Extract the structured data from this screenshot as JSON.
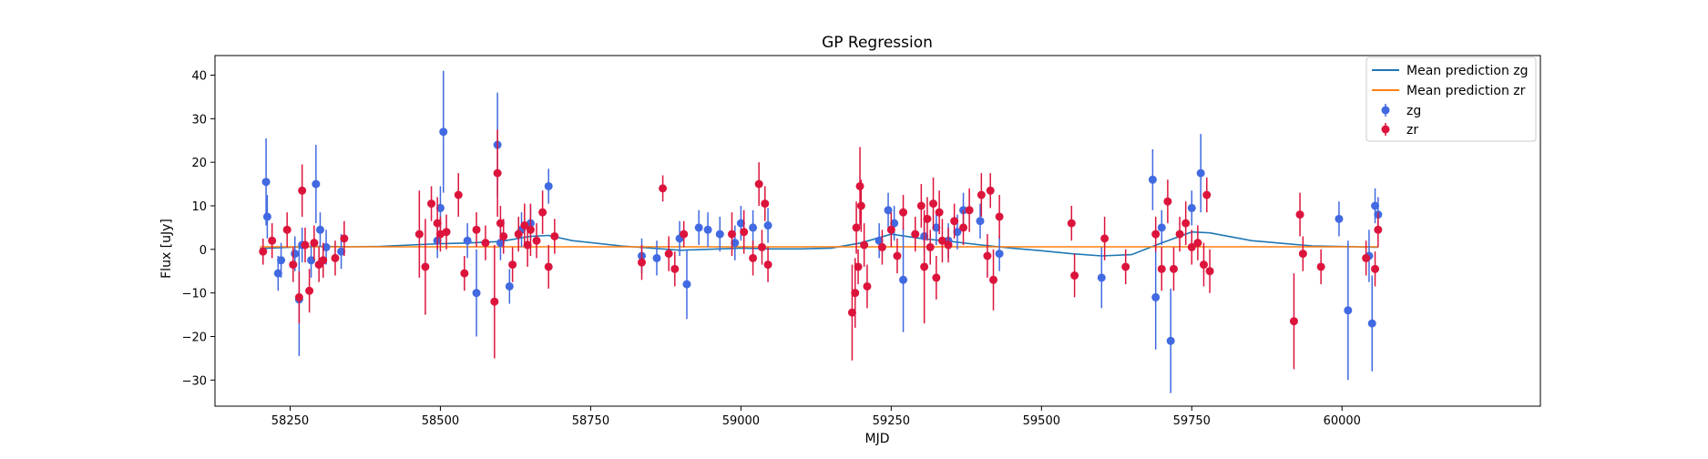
{
  "chart_data": {
    "type": "scatter",
    "title": "GP Regression",
    "xlabel": "MJD",
    "ylabel": "Flux [uJy]",
    "xlim": [
      58125,
      60330
    ],
    "ylim": [
      -36,
      44.5
    ],
    "grid": false,
    "legend_position": "top-right",
    "x_ticks": [
      58250,
      58500,
      58750,
      59000,
      59250,
      59500,
      59750,
      60000
    ],
    "y_ticks": [
      -30,
      -20,
      -10,
      0,
      10,
      20,
      30,
      40
    ],
    "x_tick_labels": [
      "58250",
      "58500",
      "58750",
      "59000",
      "59250",
      "59500",
      "59750",
      "60000"
    ],
    "y_tick_labels": [
      "−30",
      "−20",
      "−10",
      "0",
      "10",
      "20",
      "30",
      "40"
    ],
    "legend": {
      "line_zg": "Mean prediction zg",
      "line_zr": "Mean prediction zr",
      "points_zg": "zg",
      "points_zr": "zr"
    },
    "colors": {
      "zg_line": "#1f77b4",
      "zr_line": "#ff7f0e",
      "zg_points": "#4169e1",
      "zr_points": "#dc143c"
    },
    "series": [
      {
        "name": "Mean prediction zg",
        "kind": "line",
        "x": [
          58200,
          58250,
          58300,
          58350,
          58400,
          58450,
          58500,
          58550,
          58600,
          58650,
          58680,
          58720,
          58800,
          58900,
          59000,
          59050,
          59100,
          59150,
          59200,
          59250,
          59300,
          59350,
          59400,
          59450,
          59500,
          59550,
          59600,
          59650,
          59700,
          59750,
          59780,
          59850,
          59950,
          60060
        ],
        "y": [
          0.2,
          0.5,
          0.7,
          0.6,
          0.7,
          1.0,
          1.3,
          1.5,
          1.8,
          3.0,
          3.2,
          2.0,
          0.8,
          -0.2,
          0.3,
          0.1,
          0.1,
          0.3,
          1.5,
          3.5,
          2.5,
          1.8,
          1.0,
          0.3,
          -0.3,
          -1.0,
          -1.5,
          -1.2,
          1.5,
          4.0,
          3.8,
          2.0,
          0.8,
          0.5
        ]
      },
      {
        "name": "Mean prediction zr",
        "kind": "line",
        "x": [
          58200,
          58400,
          58600,
          58800,
          59000,
          59200,
          59400,
          59600,
          59800,
          60000,
          60060
        ],
        "y": [
          0.6,
          0.6,
          0.6,
          0.6,
          0.6,
          0.6,
          0.6,
          0.6,
          0.6,
          0.6,
          0.6
        ]
      },
      {
        "name": "zg",
        "kind": "errorbar",
        "x": [
          58210,
          58212,
          58230,
          58235,
          58258,
          58265,
          58270,
          58285,
          58293,
          58300,
          58310,
          58335,
          58495,
          58500,
          58505,
          58545,
          58560,
          58595,
          58600,
          58615,
          58635,
          58650,
          58680,
          58835,
          58860,
          58898,
          58910,
          58930,
          58945,
          58965,
          58990,
          59000,
          59020,
          59045,
          59230,
          59245,
          59255,
          59270,
          59305,
          59325,
          59345,
          59360,
          59370,
          59398,
          59430,
          59600,
          59685,
          59690,
          59700,
          59715,
          59750,
          59765,
          59995,
          60010,
          60045,
          60050,
          60055,
          60060
        ],
        "y": [
          15.5,
          7.5,
          -5.5,
          -2.5,
          -1.0,
          -11.5,
          1.0,
          -2.5,
          15.0,
          4.5,
          0.5,
          -0.5,
          2.0,
          9.5,
          27.0,
          2.0,
          -10.0,
          24.0,
          1.5,
          -8.5,
          4.5,
          6.0,
          14.5,
          -1.5,
          -2.0,
          2.5,
          -8.0,
          5.0,
          4.5,
          3.5,
          1.5,
          6.0,
          5.0,
          5.5,
          2.0,
          9.0,
          6.0,
          -7.0,
          3.0,
          5.0,
          2.0,
          4.0,
          9.0,
          6.5,
          -1.0,
          -6.5,
          16.0,
          -11.0,
          5.0,
          -21.0,
          9.5,
          17.5,
          7.0,
          -14.0,
          -1.5,
          -17.0,
          10.0,
          8.0
        ],
        "err": [
          10,
          5,
          4,
          4,
          4,
          13,
          4,
          4,
          9,
          4,
          4,
          4,
          4,
          5,
          14,
          4,
          10,
          12,
          4,
          4,
          4,
          4,
          4,
          4,
          4,
          4,
          8,
          4,
          4,
          4,
          4,
          4,
          4,
          4,
          4,
          4,
          4,
          12,
          4,
          4,
          4,
          4,
          4,
          4,
          4,
          7,
          7,
          12,
          4,
          12,
          4,
          9,
          4,
          16,
          6,
          11,
          4,
          4
        ]
      },
      {
        "name": "zr",
        "kind": "errorbar",
        "x": [
          58205,
          58220,
          58245,
          58255,
          58265,
          58270,
          58275,
          58282,
          58290,
          58298,
          58305,
          58325,
          58340,
          58465,
          58475,
          58485,
          58495,
          58500,
          58510,
          58530,
          58540,
          58560,
          58575,
          58590,
          58595,
          58600,
          58605,
          58620,
          58630,
          58640,
          58645,
          58650,
          58660,
          58670,
          58680,
          58690,
          58835,
          58870,
          58880,
          58890,
          58905,
          58985,
          59005,
          59020,
          59030,
          59035,
          59040,
          59045,
          59185,
          59190,
          59192,
          59195,
          59198,
          59200,
          59205,
          59210,
          59235,
          59250,
          59260,
          59270,
          59290,
          59300,
          59305,
          59310,
          59315,
          59320,
          59325,
          59330,
          59335,
          59345,
          59355,
          59370,
          59380,
          59400,
          59410,
          59415,
          59420,
          59430,
          59550,
          59555,
          59605,
          59640,
          59690,
          59700,
          59710,
          59720,
          59730,
          59740,
          59750,
          59760,
          59770,
          59775,
          59780,
          59920,
          59930,
          59935,
          59965,
          60040,
          60055,
          60060
        ],
        "y": [
          -0.5,
          2.0,
          4.5,
          -3.5,
          -11.0,
          13.5,
          1.0,
          -9.5,
          1.5,
          -3.5,
          -2.5,
          -2.0,
          2.5,
          3.5,
          -4.0,
          10.5,
          6.0,
          3.5,
          4.0,
          12.5,
          -5.5,
          4.5,
          1.5,
          -12.0,
          17.5,
          6.0,
          3.0,
          -3.5,
          3.5,
          5.5,
          1.0,
          4.5,
          2.0,
          8.5,
          -4.0,
          3.0,
          -3.0,
          14.0,
          -1.0,
          -4.5,
          3.5,
          3.5,
          4.0,
          -2.0,
          15.0,
          0.5,
          10.5,
          -3.5,
          -14.5,
          -10.0,
          5.0,
          -4.0,
          14.5,
          10.0,
          1.0,
          -8.5,
          0.5,
          4.5,
          -1.5,
          8.5,
          3.5,
          10.0,
          -4.0,
          7.0,
          0.5,
          10.5,
          -6.5,
          8.5,
          2.0,
          1.0,
          6.5,
          5.0,
          9.0,
          12.5,
          -1.5,
          13.5,
          -7.0,
          7.5,
          6.0,
          -6.0,
          2.5,
          -4.0,
          3.5,
          -4.5,
          11.0,
          -4.5,
          3.5,
          6.0,
          0.5,
          1.5,
          -3.5,
          12.5,
          -5.0,
          -16.5,
          8.0,
          -1.0,
          -4.0,
          -2.0,
          -4.5,
          4.5
        ],
        "err": [
          3,
          4,
          4,
          4,
          6,
          6,
          4,
          5,
          4,
          4,
          4,
          4,
          4,
          10,
          11,
          4,
          6,
          4,
          4,
          5,
          4,
          4,
          4,
          13,
          10,
          4,
          4,
          4,
          4,
          5,
          5,
          6,
          4,
          5,
          5,
          4,
          4,
          3,
          4,
          4,
          3,
          5,
          5,
          4,
          5,
          4,
          4,
          4,
          11,
          8,
          6,
          4,
          9,
          6,
          5,
          5,
          4,
          4,
          4,
          4,
          4,
          5,
          13,
          5,
          4,
          6,
          5,
          5,
          5,
          4,
          4,
          4,
          5,
          5,
          5,
          4,
          7,
          5,
          4,
          5,
          5,
          4,
          4,
          5,
          5,
          5,
          4,
          5,
          4,
          4,
          5,
          4,
          5,
          11,
          5,
          4,
          4,
          4,
          4,
          4
        ]
      }
    ]
  }
}
